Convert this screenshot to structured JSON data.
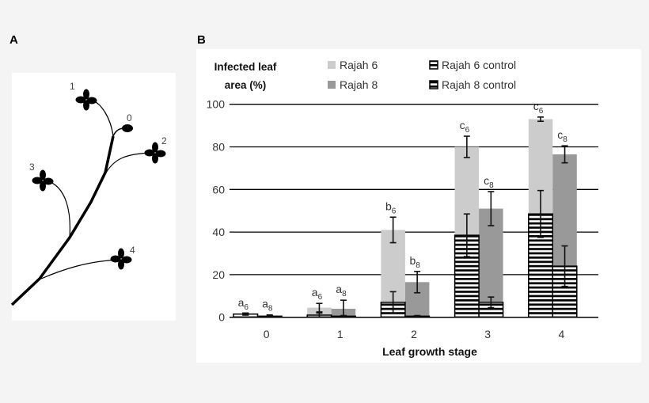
{
  "panels": {
    "a": {
      "label": "A",
      "leaf_labels": [
        "0",
        "1",
        "2",
        "3",
        "4"
      ]
    },
    "b": {
      "label": "B"
    }
  },
  "chart_data": {
    "type": "bar",
    "title": "",
    "ylabel": "Infected leaf area (%)",
    "ylabel_lines": [
      "Infected leaf",
      "area (%)"
    ],
    "xlabel": "Leaf growth stage",
    "categories": [
      "0",
      "1",
      "2",
      "3",
      "4"
    ],
    "ylim": [
      0,
      100
    ],
    "yticks": [
      "0",
      "20",
      "40",
      "60",
      "80",
      "100"
    ],
    "grid": true,
    "legend_position": "top",
    "series": [
      {
        "name": "Rajah 6",
        "color": "#cccccc",
        "pattern": "solid",
        "values": [
          1.5,
          4.5,
          41,
          80,
          93
        ],
        "errors": [
          0.3,
          2,
          6,
          5,
          1
        ]
      },
      {
        "name": "Rajah 8",
        "color": "#999999",
        "pattern": "solid",
        "values": [
          0.8,
          4,
          16.5,
          51,
          76.5
        ],
        "errors": [
          0.3,
          4,
          5,
          8,
          4
        ]
      },
      {
        "name": "Rajah 6 control",
        "color": "#000000",
        "pattern": "horizontal-stripes",
        "values": [
          1.5,
          1,
          7,
          38.5,
          48.5
        ],
        "errors": [
          0.5,
          1,
          5,
          10,
          11
        ]
      },
      {
        "name": "Rajah 8 control",
        "color": "#000000",
        "pattern": "horizontal-stripes",
        "values": [
          0.5,
          0.5,
          0.5,
          7,
          24
        ],
        "errors": [
          0.2,
          0.3,
          0.3,
          2.5,
          9.5
        ]
      }
    ],
    "annotations": {
      "Rajah 6": [
        [
          "a",
          "6"
        ],
        [
          "a",
          "6"
        ],
        [
          "b",
          "6"
        ],
        [
          "c",
          "6"
        ],
        [
          "c",
          "6"
        ]
      ],
      "Rajah 8": [
        [
          "a",
          "8"
        ],
        [
          "a",
          "8"
        ],
        [
          "b",
          "8"
        ],
        [
          "c",
          "8"
        ],
        [
          "c",
          "8"
        ]
      ]
    }
  }
}
